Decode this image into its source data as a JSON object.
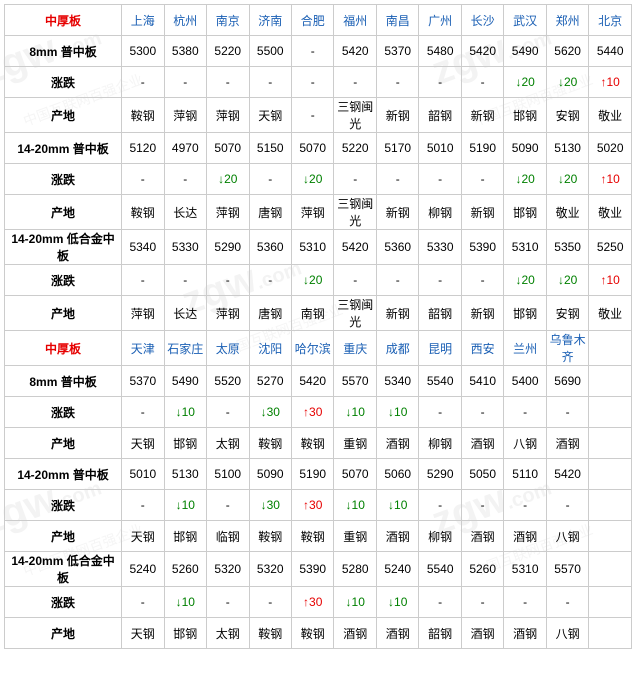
{
  "arrows": {
    "up": "↑",
    "down": "↓"
  },
  "colors": {
    "border": "#cccccc",
    "city": "#1a5fb4",
    "section": "#e60000",
    "up": "#e60000",
    "down": "#008000",
    "text": "#000000",
    "watermark": "#f3f3f3"
  },
  "sections": [
    {
      "title": "中厚板",
      "cities": [
        "上海",
        "杭州",
        "南京",
        "济南",
        "合肥",
        "福州",
        "南昌",
        "广州",
        "长沙",
        "武汉",
        "郑州",
        "北京"
      ],
      "rows": [
        {
          "label": "8mm 普中板",
          "type": "val",
          "cells": [
            "5300",
            "5380",
            "5220",
            "5500",
            "-",
            "5420",
            "5370",
            "5480",
            "5420",
            "5490",
            "5620",
            "5440"
          ]
        },
        {
          "label": "涨跌",
          "type": "chg",
          "cells": [
            "-",
            "-",
            "-",
            "-",
            "-",
            "-",
            "-",
            "-",
            "-",
            "↓20",
            "↓20",
            "↑10"
          ]
        },
        {
          "label": "产地",
          "type": "val",
          "cells": [
            "鞍钢",
            "萍钢",
            "萍钢",
            "天钢",
            "-",
            "三钢闽光",
            "新钢",
            "韶钢",
            "新钢",
            "邯钢",
            "安钢",
            "敬业"
          ]
        },
        {
          "label": "14-20mm 普中板",
          "type": "val",
          "cells": [
            "5120",
            "4970",
            "5070",
            "5150",
            "5070",
            "5220",
            "5170",
            "5010",
            "5190",
            "5090",
            "5130",
            "5020"
          ]
        },
        {
          "label": "涨跌",
          "type": "chg",
          "cells": [
            "-",
            "-",
            "↓20",
            "-",
            "↓20",
            "-",
            "-",
            "-",
            "-",
            "↓20",
            "↓20",
            "↑10"
          ]
        },
        {
          "label": "产地",
          "type": "val",
          "cells": [
            "鞍钢",
            "长达",
            "萍钢",
            "唐钢",
            "萍钢",
            "三钢闽光",
            "新钢",
            "柳钢",
            "新钢",
            "邯钢",
            "敬业",
            "敬业"
          ]
        },
        {
          "label": "14-20mm 低合金中板",
          "type": "val",
          "cells": [
            "5340",
            "5330",
            "5290",
            "5360",
            "5310",
            "5420",
            "5360",
            "5330",
            "5390",
            "5310",
            "5350",
            "5250"
          ]
        },
        {
          "label": "涨跌",
          "type": "chg",
          "cells": [
            "-",
            "-",
            "-",
            "-",
            "↓20",
            "-",
            "-",
            "-",
            "-",
            "↓20",
            "↓20",
            "↑10"
          ]
        },
        {
          "label": "产地",
          "type": "val",
          "cells": [
            "萍钢",
            "长达",
            "萍钢",
            "唐钢",
            "南钢",
            "三钢闽光",
            "新钢",
            "韶钢",
            "新钢",
            "邯钢",
            "安钢",
            "敬业"
          ]
        }
      ]
    },
    {
      "title": "中厚板",
      "cities": [
        "天津",
        "石家庄",
        "太原",
        "沈阳",
        "哈尔滨",
        "重庆",
        "成都",
        "昆明",
        "西安",
        "兰州",
        "乌鲁木齐",
        ""
      ],
      "rows": [
        {
          "label": "8mm 普中板",
          "type": "val",
          "cells": [
            "5370",
            "5490",
            "5520",
            "5270",
            "5420",
            "5570",
            "5340",
            "5540",
            "5410",
            "5400",
            "5690",
            ""
          ]
        },
        {
          "label": "涨跌",
          "type": "chg",
          "cells": [
            "-",
            "↓10",
            "-",
            "↓30",
            "↑30",
            "↓10",
            "↓10",
            "-",
            "-",
            "-",
            "-",
            ""
          ]
        },
        {
          "label": "产地",
          "type": "val",
          "cells": [
            "天钢",
            "邯钢",
            "太钢",
            "鞍钢",
            "鞍钢",
            "重钢",
            "酒钢",
            "柳钢",
            "酒钢",
            "八钢",
            "酒钢",
            ""
          ]
        },
        {
          "label": "14-20mm 普中板",
          "type": "val",
          "cells": [
            "5010",
            "5130",
            "5100",
            "5090",
            "5190",
            "5070",
            "5060",
            "5290",
            "5050",
            "5110",
            "5420",
            ""
          ]
        },
        {
          "label": "涨跌",
          "type": "chg",
          "cells": [
            "-",
            "↓10",
            "-",
            "↓30",
            "↑30",
            "↓10",
            "↓10",
            "-",
            "-",
            "-",
            "-",
            ""
          ]
        },
        {
          "label": "产地",
          "type": "val",
          "cells": [
            "天钢",
            "邯钢",
            "临钢",
            "鞍钢",
            "鞍钢",
            "重钢",
            "酒钢",
            "柳钢",
            "酒钢",
            "酒钢",
            "八钢",
            ""
          ]
        },
        {
          "label": "14-20mm 低合金中板",
          "type": "val",
          "cells": [
            "5240",
            "5260",
            "5320",
            "5320",
            "5390",
            "5280",
            "5240",
            "5540",
            "5260",
            "5310",
            "5570",
            ""
          ]
        },
        {
          "label": "涨跌",
          "type": "chg",
          "cells": [
            "-",
            "↓10",
            "-",
            "-",
            "↑30",
            "↓10",
            "↓10",
            "-",
            "-",
            "-",
            "-",
            ""
          ]
        },
        {
          "label": "产地",
          "type": "val",
          "cells": [
            "天钢",
            "邯钢",
            "太钢",
            "鞍钢",
            "鞍钢",
            "酒钢",
            "酒钢",
            "韶钢",
            "酒钢",
            "酒钢",
            "八钢",
            ""
          ]
        }
      ]
    }
  ]
}
